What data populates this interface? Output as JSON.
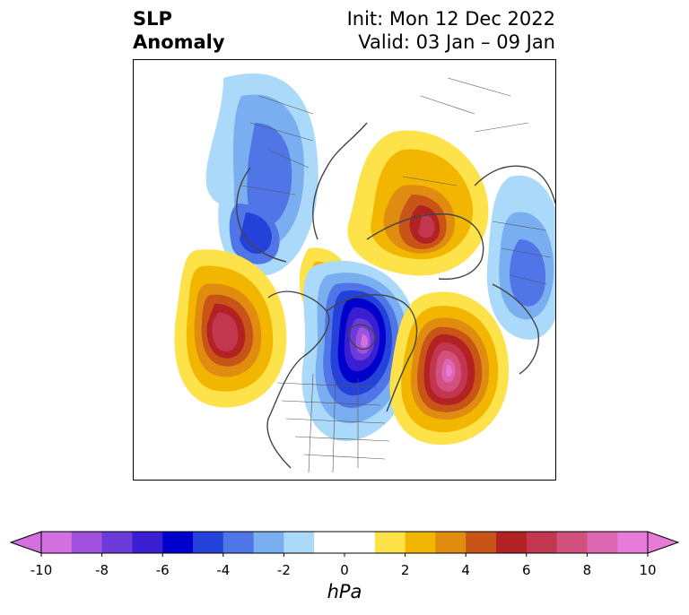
{
  "header": {
    "variable_line1": "SLP",
    "variable_line2": "Anomaly",
    "init": "Init: Mon 12 Dec 2022",
    "valid": "Valid: 03 Jan – 09 Jan"
  },
  "colorbar": {
    "unit": "hPa",
    "ticks": [
      "-10",
      "-8",
      "-6",
      "-4",
      "-2",
      "0",
      "2",
      "4",
      "6",
      "8",
      "10"
    ],
    "tick_values": [
      -10,
      -8,
      -6,
      -4,
      -2,
      0,
      2,
      4,
      6,
      8,
      10
    ],
    "colors": [
      "#d46fe0",
      "#a052de",
      "#6a3bd8",
      "#3a1fd2",
      "#0000cc",
      "#2442d9",
      "#4f75e6",
      "#79aef0",
      "#aad9fa",
      "#ffffff",
      "#ffffff",
      "#fde24a",
      "#f2b600",
      "#e08c10",
      "#c85418",
      "#b22222",
      "#c23650",
      "#d0507e",
      "#dc66b0",
      "#e87ad8"
    ]
  },
  "map": {
    "projection": "north polar stereographic",
    "anomalies": [
      {
        "name": "low-north-america-arctic",
        "sign": "negative",
        "peak_hpa": -10
      },
      {
        "name": "high-north-pacific",
        "sign": "positive",
        "peak_hpa": 8
      },
      {
        "name": "high-north-atlantic",
        "sign": "positive",
        "peak_hpa": 10
      },
      {
        "name": "high-siberia-arctic",
        "sign": "positive",
        "peak_hpa": 7
      },
      {
        "name": "low-europe",
        "sign": "negative",
        "peak_hpa": -5
      },
      {
        "name": "low-east-asia",
        "sign": "negative",
        "peak_hpa": -4
      }
    ]
  }
}
